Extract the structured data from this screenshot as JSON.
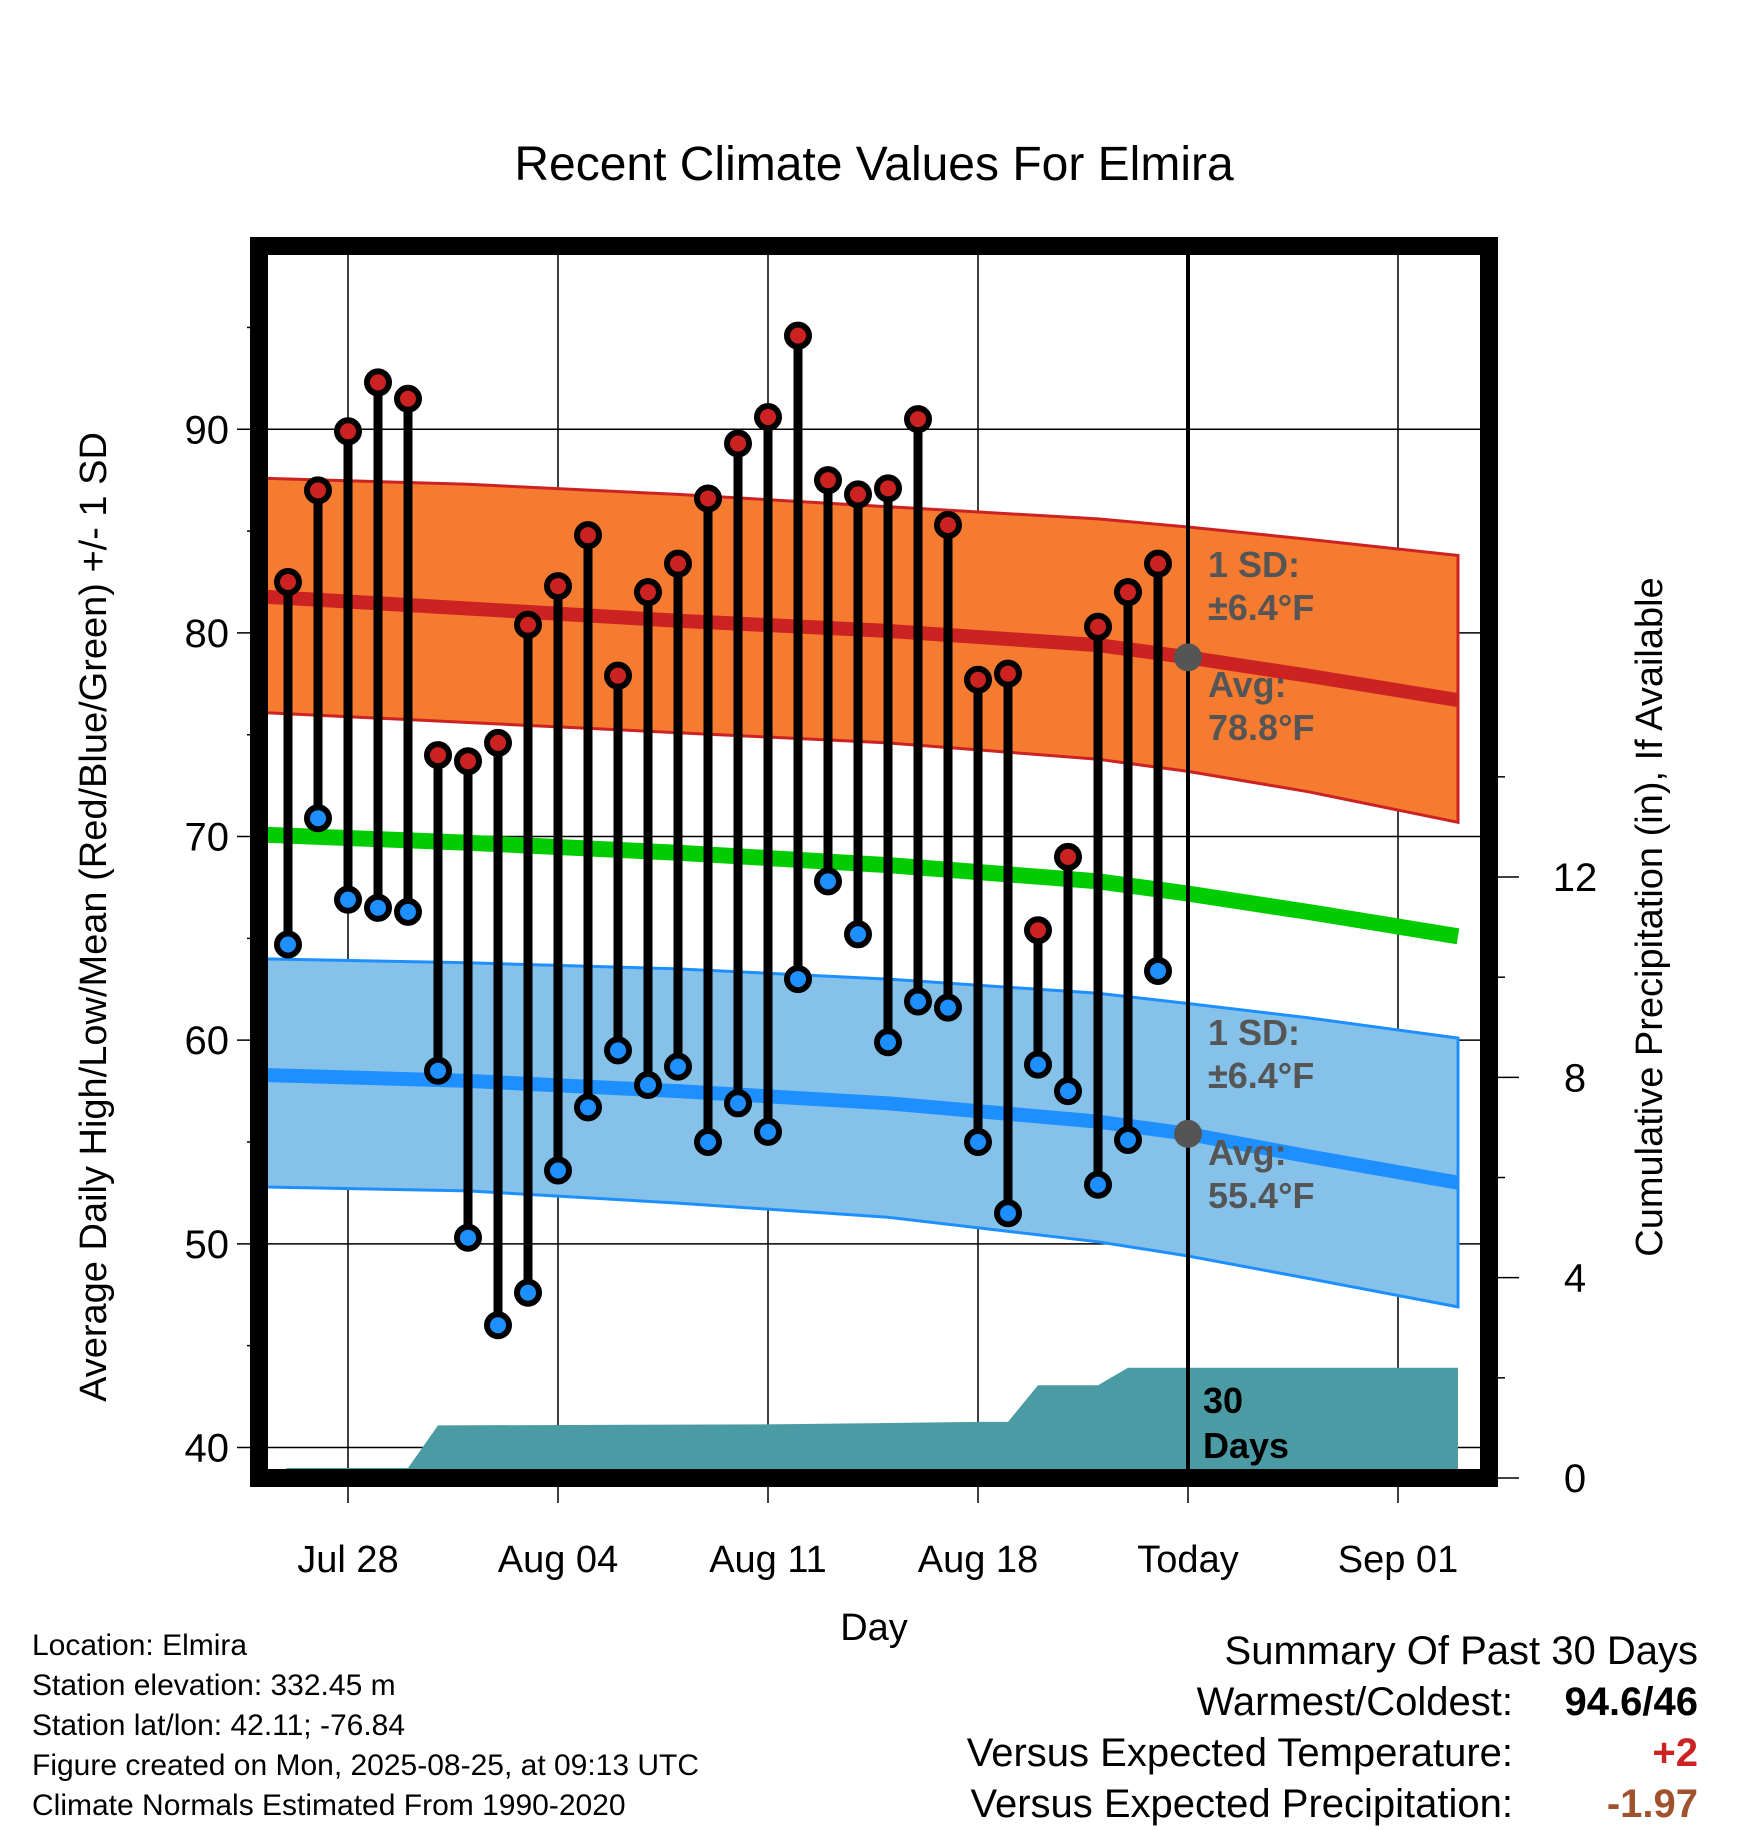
{
  "chart_data": {
    "type": "line",
    "title": "Recent Climate Values For Elmira",
    "xlabel": "Day",
    "ylabel": "Average Daily High/Low/Mean (Red/Blue/Green) +/- 1 SD",
    "y2label": "Cumulative Precipitation (in), If Available",
    "x_tick_labels": [
      "Jul 28",
      "Aug 04",
      "Aug 11",
      "Aug 18",
      "Today",
      "Sep 01"
    ],
    "y_ticks": [
      40,
      50,
      60,
      70,
      80,
      90
    ],
    "y2_ticks": [
      0,
      4,
      8,
      12
    ],
    "ylim": [
      38.5,
      99
    ],
    "y2lim": [
      0,
      24.6
    ],
    "grid": true,
    "colors": {
      "high": "#cc2222",
      "low": "#1e8fff",
      "mean": "#00cc00",
      "high_band": "#f47b30",
      "low_band": "#85c1e9",
      "precip": "#4a9ba3",
      "today_marker": "#555555"
    },
    "observed": {
      "days": [
        "Jul 26",
        "Jul 27",
        "Jul 28",
        "Jul 29",
        "Jul 30",
        "Jul 31",
        "Aug 01",
        "Aug 02",
        "Aug 03",
        "Aug 04",
        "Aug 05",
        "Aug 06",
        "Aug 07",
        "Aug 08",
        "Aug 09",
        "Aug 10",
        "Aug 11",
        "Aug 12",
        "Aug 13",
        "Aug 14",
        "Aug 15",
        "Aug 16",
        "Aug 17",
        "Aug 18",
        "Aug 19",
        "Aug 20",
        "Aug 21",
        "Aug 22",
        "Aug 23",
        "Aug 24"
      ],
      "high": [
        82.5,
        87.0,
        89.9,
        92.3,
        91.5,
        74.0,
        73.7,
        74.6,
        80.4,
        82.3,
        84.8,
        77.9,
        82.0,
        83.4,
        86.6,
        89.3,
        90.6,
        94.6,
        87.5,
        86.8,
        87.1,
        90.5,
        85.3,
        77.7,
        78.0,
        65.4,
        69.0,
        80.3,
        82.0,
        83.4
      ],
      "low": [
        64.7,
        70.9,
        66.9,
        66.5,
        66.3,
        58.5,
        50.3,
        46.0,
        47.6,
        53.6,
        56.7,
        59.5,
        57.8,
        58.7,
        55.0,
        56.9,
        55.5,
        63.0,
        67.8,
        65.2,
        59.9,
        61.9,
        61.6,
        55.0,
        51.5,
        58.8,
        57.5,
        52.9,
        55.1,
        63.4
      ]
    },
    "normals": {
      "days": [
        "Jul 25",
        "Aug 01",
        "Aug 08",
        "Aug 15",
        "Aug 22",
        "Aug 25",
        "Aug 29",
        "Sep 03"
      ],
      "high_avg": [
        81.8,
        81.2,
        80.6,
        80.1,
        79.4,
        78.8,
        77.9,
        76.7
      ],
      "high_sd_upper": [
        87.6,
        87.3,
        86.8,
        86.2,
        85.6,
        85.2,
        84.6,
        83.8
      ],
      "high_sd_lower": [
        76.1,
        75.6,
        75.1,
        74.6,
        73.8,
        73.2,
        72.2,
        70.7
      ],
      "mean_avg": [
        70.1,
        69.7,
        69.2,
        68.6,
        67.8,
        67.2,
        66.3,
        65.1
      ],
      "low_avg": [
        58.3,
        58.0,
        57.5,
        56.9,
        56.0,
        55.4,
        54.3,
        53.0
      ],
      "low_sd_upper": [
        64.0,
        63.8,
        63.5,
        63.0,
        62.3,
        61.8,
        61.1,
        60.1
      ],
      "low_sd_lower": [
        52.8,
        52.6,
        52.0,
        51.3,
        50.1,
        49.4,
        48.3,
        46.9
      ]
    },
    "precip_cumulative": {
      "days": [
        "Jul 25",
        "Jul 26",
        "Jul 30",
        "Jul 31",
        "Aug 11",
        "Aug 18",
        "Aug 19",
        "Aug 20",
        "Aug 22",
        "Aug 23",
        "Sep 03"
      ],
      "values": [
        0.0,
        0.2,
        0.2,
        1.05,
        1.07,
        1.12,
        1.12,
        1.85,
        1.85,
        2.2,
        2.2
      ]
    },
    "annotations": {
      "high_sd": "1 SD:",
      "high_sd_value": "±6.4°F",
      "high_avg_label": "Avg:",
      "high_avg_value": "78.8°F",
      "low_sd": "1 SD:",
      "low_sd_value": "±6.4°F",
      "low_avg_label": "Avg:",
      "low_avg_value": "55.4°F",
      "window_label_1": "30",
      "window_label_2": "Days"
    }
  },
  "footer": {
    "location": "Location: Elmira",
    "elevation": "Station elevation: 332.45 m",
    "latlon": "Station lat/lon: 42.11; -76.84",
    "created": "Figure created on Mon, 2025-08-25, at 09:13 UTC",
    "normals": "Climate Normals Estimated From 1990-2020"
  },
  "summary": {
    "heading": "Summary Of Past 30 Days",
    "warmest_label": "Warmest/Coldest:",
    "warmest_value": "94.6/46",
    "temp_label": "Versus Expected Temperature:",
    "temp_value": "+2",
    "precip_label": "Versus Expected Precipitation:",
    "precip_value": "-1.97"
  }
}
